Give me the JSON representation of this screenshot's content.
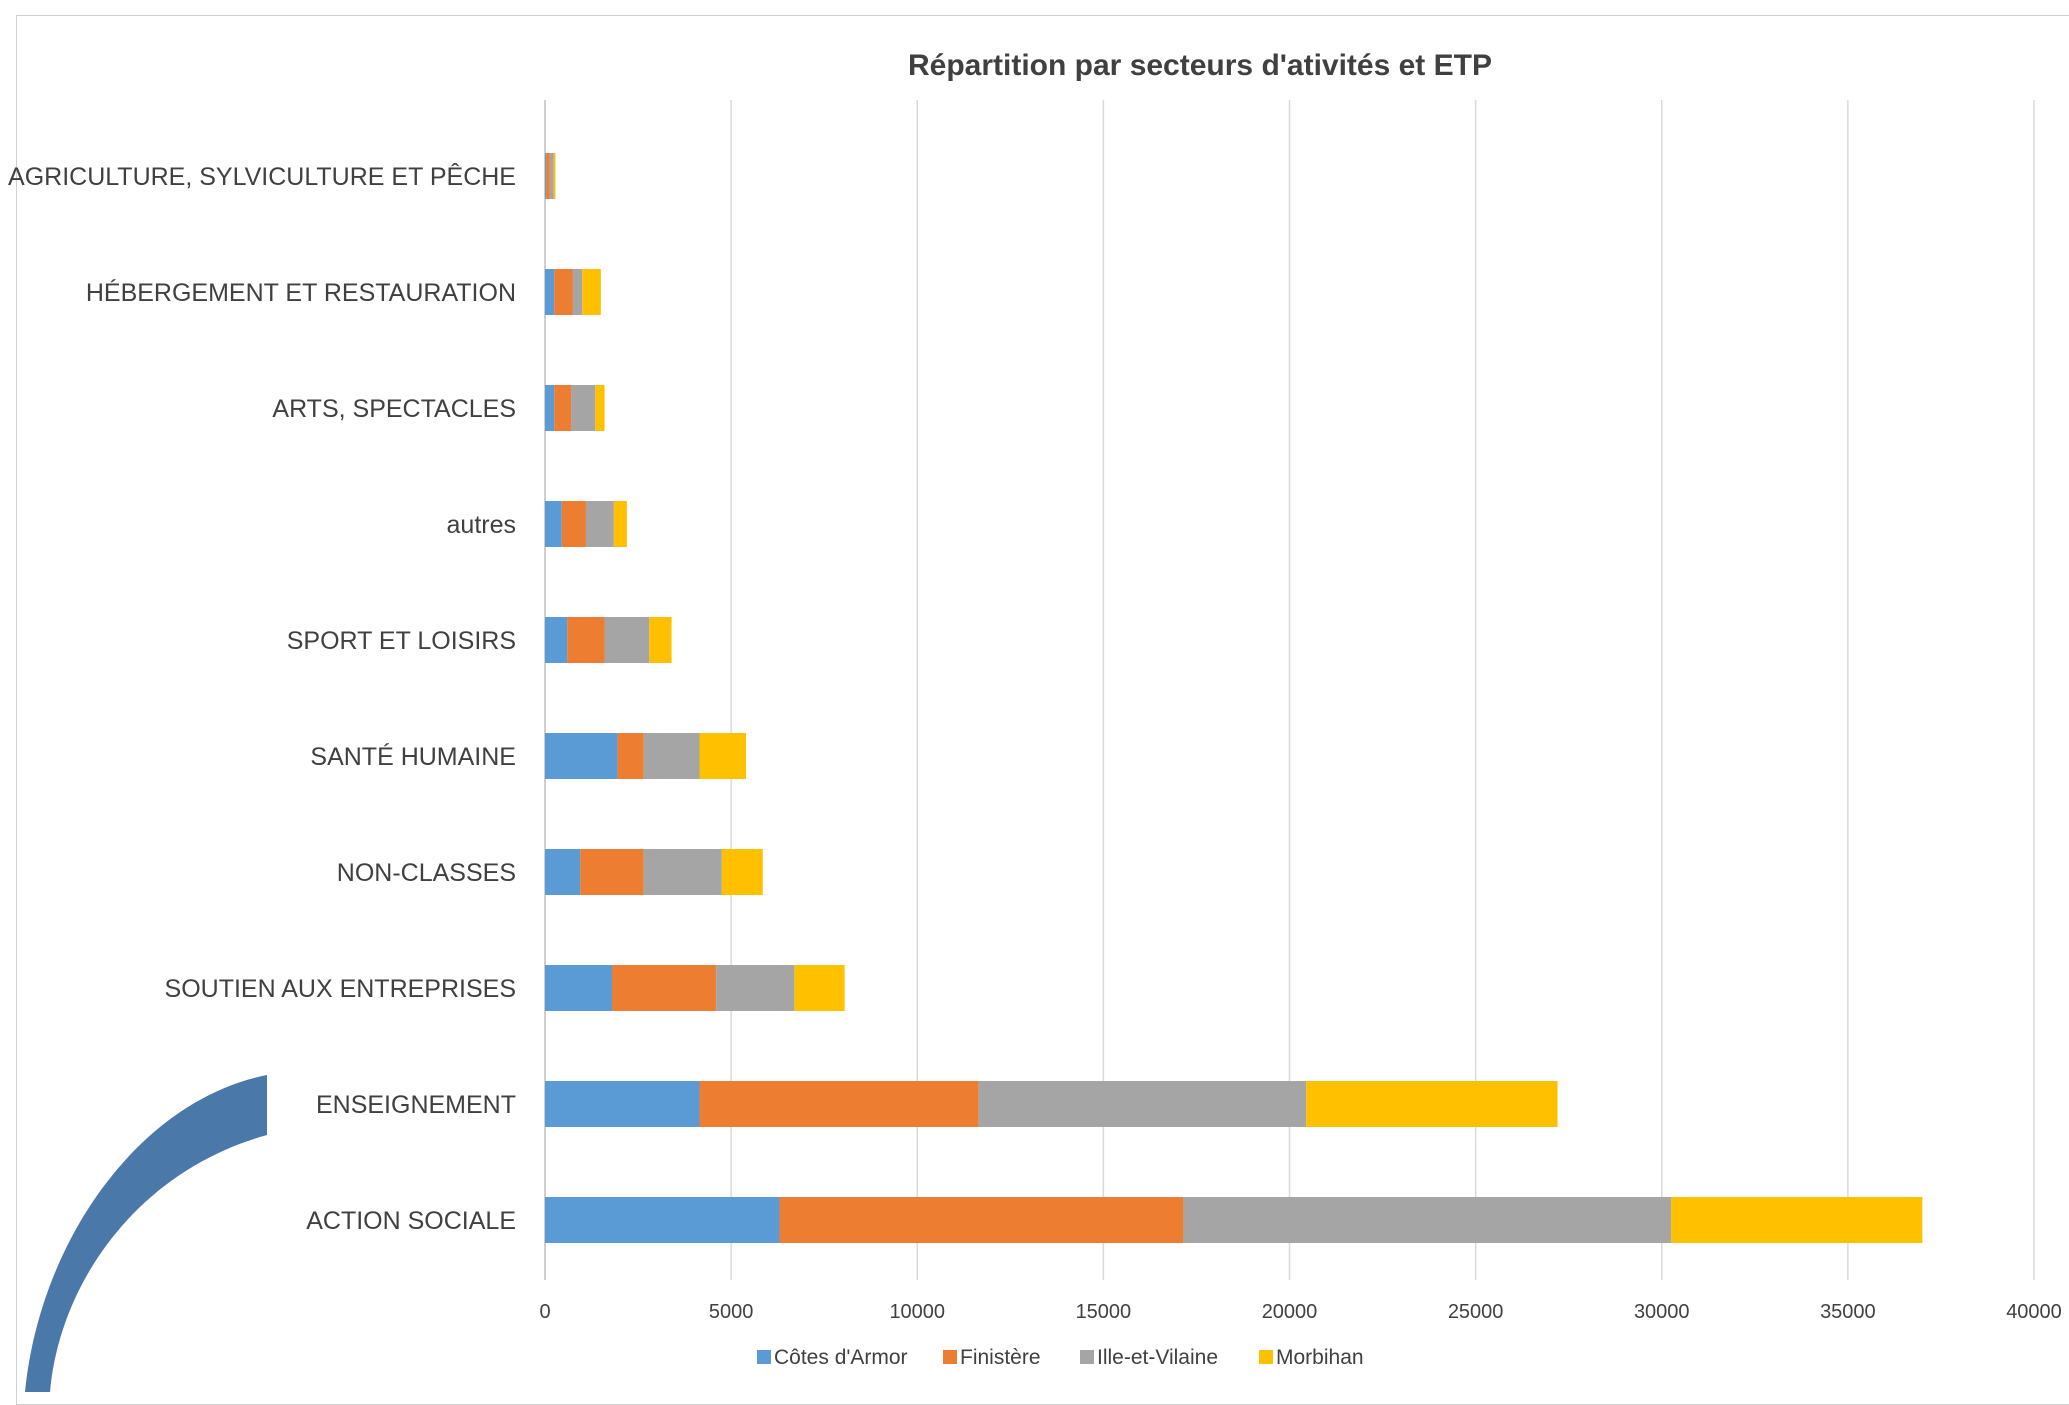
{
  "chart_data": {
    "type": "bar",
    "orientation": "horizontal",
    "stacked": true,
    "title": "Répartition par secteurs d'ativités et ETP",
    "categories": [
      "AGRICULTURE, SYLVICULTURE ET PÊCHE",
      "HÉBERGEMENT ET RESTAURATION",
      "ARTS, SPECTACLES",
      "autres",
      "SPORT ET LOISIRS",
      "SANTÉ HUMAINE",
      "NON-CLASSES",
      "SOUTIEN AUX ENTREPRISES",
      "ENSEIGNEMENT",
      "ACTION SOCIALE"
    ],
    "series": [
      {
        "name": "Côtes d'Armor",
        "color": "#5B9BD5",
        "values": [
          30,
          250,
          250,
          450,
          600,
          1950,
          950,
          1800,
          4150,
          6300
        ]
      },
      {
        "name": "Finistère",
        "color": "#ED7D31",
        "values": [
          100,
          500,
          450,
          650,
          1000,
          700,
          1700,
          2800,
          7500,
          10850
        ]
      },
      {
        "name": "Ille-et-Vilaine",
        "color": "#A5A5A5",
        "values": [
          100,
          250,
          650,
          750,
          1200,
          1500,
          2100,
          2100,
          8800,
          13100
        ]
      },
      {
        "name": "Morbihan",
        "color": "#FFC000",
        "values": [
          50,
          500,
          250,
          350,
          600,
          1250,
          1100,
          1350,
          6750,
          6750
        ]
      }
    ],
    "xlim": [
      0,
      40000
    ],
    "xticks": [
      "0",
      "5000",
      "10000",
      "15000",
      "20000",
      "25000",
      "30000",
      "35000",
      "40000"
    ],
    "grid": "vertical",
    "legend_position": "bottom"
  },
  "decoration": {
    "accent_color": "#4A78A8"
  }
}
